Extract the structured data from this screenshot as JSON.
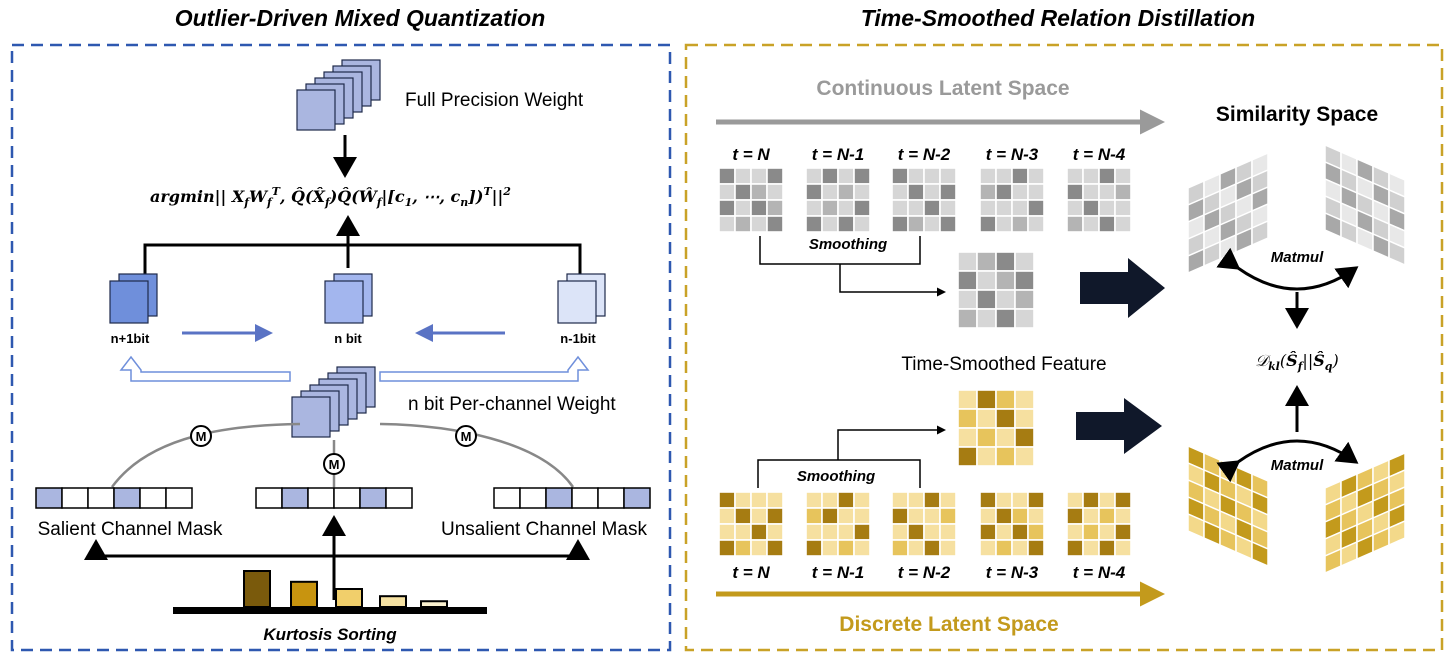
{
  "left_panel": {
    "title": "Outlier-Driven Mixed Quantization",
    "full_precision_label": "Full Precision Weight",
    "objective": "argmin|| X_f W_f^T, Q(X_f) Q(W_f|[c1, ⋯, cn])^T ||^2",
    "bits": {
      "left": "n+1bit",
      "center": "n bit",
      "right": "n-1bit"
    },
    "per_channel_label": "n bit Per-channel Weight",
    "merge_symbol": "M",
    "salient_mask_label": "Salient Channel Mask",
    "unsalient_mask_label": "Unsalient Channel Mask",
    "kurtosis_label": "Kurtosis Sorting",
    "kurtosis_bar_values": [
      5,
      3.5,
      2.5,
      1.5,
      0.8
    ]
  },
  "right_panel": {
    "title": "Time-Smoothed Relation Distillation",
    "continuous_label": "Continuous Latent Space",
    "discrete_label": "Discrete Latent Space",
    "similarity_label": "Similarity Space",
    "timesteps": [
      "t = N",
      "t = N-1",
      "t = N-2",
      "t = N-3",
      "t = N-4"
    ],
    "smoothing_label": "Smoothing",
    "time_smoothed_label": "Time-Smoothed Feature",
    "matmul_label": "Matmul",
    "kl_label": "D_kl(S_f || S_q)"
  },
  "colors": {
    "blue_border": "#2e58b0",
    "gold_border": "#c9a227",
    "gray_arrow": "#9a9a9a",
    "gold_arrow": "#c39a1c",
    "weight_blue": "#aab6e0",
    "dark_gray": "#8a8a8a",
    "gold_dark": "#9a7614",
    "gold_light": "#f4dc8c"
  }
}
